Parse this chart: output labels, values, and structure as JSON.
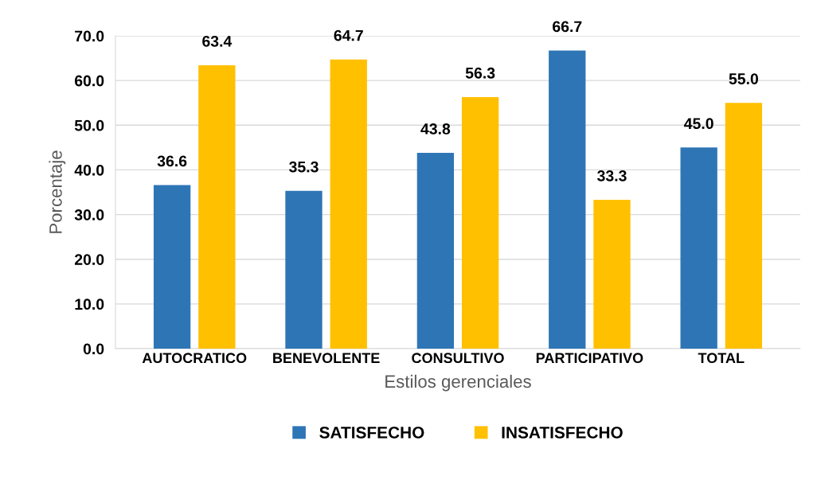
{
  "chart_data": {
    "type": "bar",
    "xlabel": "Estilos gerenciales",
    "ylabel": "Porcentaje",
    "categories": [
      "AUTOCRATICO",
      "BENEVOLENTE",
      "CONSULTIVO",
      "PARTICIPATIVO",
      "TOTAL"
    ],
    "series": [
      {
        "name": "SATISFECHO",
        "color": "#2e75b6",
        "values": [
          36.6,
          35.3,
          43.8,
          66.7,
          45.0
        ],
        "value_labels": [
          "36.6",
          "35.3",
          "43.8",
          "66.7",
          "45.0"
        ]
      },
      {
        "name": "INSATISFECHO",
        "color": "#ffc000",
        "values": [
          63.4,
          64.7,
          56.3,
          33.3,
          55.0
        ],
        "value_labels": [
          "63.4",
          "64.7",
          "56.3",
          "33.3",
          "55.0"
        ]
      }
    ],
    "ylim": [
      0,
      70
    ],
    "yticks": [
      {
        "value": 0,
        "label": "0.0"
      },
      {
        "value": 10,
        "label": "10.0"
      },
      {
        "value": 20,
        "label": "20.0"
      },
      {
        "value": 30,
        "label": "30.0"
      },
      {
        "value": 40,
        "label": "40.0"
      },
      {
        "value": 50,
        "label": "50.0"
      },
      {
        "value": 60,
        "label": "60.0"
      },
      {
        "value": 70,
        "label": "70.0"
      }
    ],
    "grid": "y",
    "legend": "bottom"
  }
}
